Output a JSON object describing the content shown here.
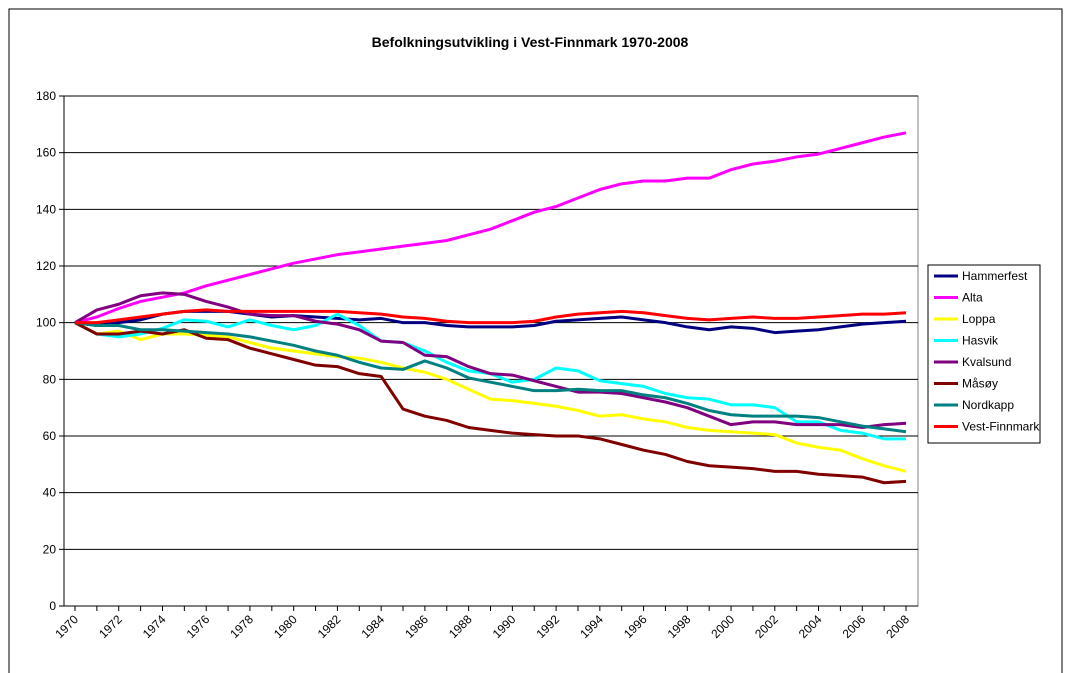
{
  "chart_data": {
    "type": "line",
    "title": "Befolkningsutvikling i Vest-Finnmark 1970-2008",
    "categories": [
      "1970",
      null,
      "1972",
      null,
      "1974",
      null,
      "1976",
      null,
      "1978",
      null,
      "1980",
      null,
      "1982",
      null,
      "1984",
      null,
      "1986",
      null,
      "1988",
      null,
      "1990",
      null,
      "1992",
      null,
      "1994",
      null,
      "1996",
      null,
      "1998",
      null,
      "2000",
      null,
      "2002",
      null,
      "2004",
      null,
      "2006",
      null,
      "2008"
    ],
    "ylim": [
      0,
      180
    ],
    "yticks": [
      0,
      20,
      40,
      60,
      80,
      100,
      120,
      140,
      160,
      180
    ],
    "grid": true,
    "legend": "right",
    "series": [
      {
        "name": "Hammerfest",
        "color": "#000080",
        "values": [
          100,
          99,
          100,
          101,
          103,
          104,
          104,
          104,
          103,
          102,
          102.5,
          102,
          101.5,
          101,
          101.5,
          100,
          100,
          99,
          98.5,
          98.5,
          98.5,
          99,
          100.5,
          101,
          101.5,
          102,
          101,
          100,
          98.5,
          97.5,
          98.5,
          98,
          96.5,
          97,
          97.5,
          98.5,
          99.5,
          100,
          100.5
        ]
      },
      {
        "name": "Alta",
        "color": "#ff00ff",
        "values": [
          100,
          102,
          105,
          107.5,
          109,
          110.5,
          113,
          115,
          117,
          119,
          121,
          122.5,
          124,
          125,
          126,
          127,
          128,
          129,
          131,
          133,
          136,
          139,
          141,
          144,
          147,
          149,
          150,
          150,
          151,
          151,
          154,
          156,
          157,
          158.5,
          159.5,
          161.5,
          163.5,
          165.5,
          167
        ]
      },
      {
        "name": "Loppa",
        "color": "#ffff00",
        "values": [
          100,
          96,
          97,
          94,
          96,
          96,
          95.5,
          95,
          93,
          91,
          90,
          89,
          88,
          87.5,
          86,
          84,
          82.5,
          80,
          76.5,
          73,
          72.5,
          71.5,
          70.5,
          69,
          67,
          67.5,
          66,
          65,
          63,
          62,
          61.5,
          61,
          60.5,
          57.5,
          56,
          55,
          52,
          49.5,
          47.5
        ]
      },
      {
        "name": "Hasvik",
        "color": "#00ffff",
        "values": [
          100,
          96,
          95,
          96,
          98,
          101,
          100.5,
          98.5,
          101,
          99,
          97.5,
          99,
          103,
          99,
          93.5,
          93,
          90,
          86,
          83,
          82,
          79,
          80,
          84,
          83,
          79.5,
          78.5,
          77.5,
          75,
          73.5,
          73,
          71,
          71,
          70,
          65,
          65,
          62,
          61,
          59,
          59
        ]
      },
      {
        "name": "Kvalsund",
        "color": "#800080",
        "values": [
          100,
          104.5,
          106.5,
          109.5,
          110.5,
          110,
          107.5,
          105.5,
          103,
          102.5,
          102.5,
          100.5,
          99.5,
          97.5,
          93.5,
          93,
          88.5,
          88,
          84.5,
          82,
          81.5,
          79.5,
          77.5,
          75.5,
          75.5,
          75,
          73.5,
          72,
          70,
          67,
          64,
          65,
          65,
          64,
          64,
          64,
          63,
          64,
          64.5
        ]
      },
      {
        "name": "Måsøy",
        "color": "#800000",
        "values": [
          100,
          96,
          96,
          97,
          96,
          97.5,
          94.5,
          94,
          91,
          89,
          87,
          85,
          84.5,
          82,
          81,
          69.5,
          67,
          65.5,
          63,
          62,
          61,
          60.5,
          60,
          60,
          59,
          57,
          55,
          53.5,
          51,
          49.5,
          49,
          48.5,
          47.5,
          47.5,
          46.5,
          46,
          45.5,
          43.5,
          44
        ]
      },
      {
        "name": "Nordkapp",
        "color": "#008080",
        "values": [
          100,
          99,
          99,
          97.5,
          97.5,
          97,
          96.5,
          96,
          95,
          93.5,
          92,
          90,
          88.5,
          86,
          84,
          83.5,
          86.5,
          84,
          80.5,
          79,
          77.5,
          76,
          76,
          76.5,
          76,
          76,
          74.5,
          73.5,
          71.5,
          69,
          67.5,
          67,
          67,
          67,
          66.5,
          65,
          63.5,
          62.5,
          61.5
        ]
      },
      {
        "name": "Vest-Finnmark",
        "color": "#ff0000",
        "values": [
          100,
          100,
          101,
          102,
          103,
          104,
          104.5,
          104,
          104,
          104,
          104,
          104,
          104,
          103.5,
          103,
          102,
          101.5,
          100.5,
          100,
          100,
          100,
          100.5,
          102,
          103,
          103.5,
          104,
          103.5,
          102.5,
          101.5,
          101,
          101.5,
          102,
          101.5,
          101.5,
          102,
          102.5,
          103,
          103,
          103.5
        ]
      }
    ]
  }
}
